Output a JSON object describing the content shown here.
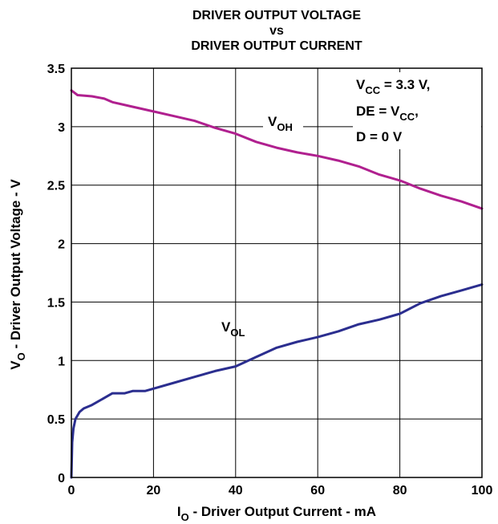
{
  "chart_data": {
    "type": "line",
    "title_lines": [
      "DRIVER OUTPUT VOLTAGE",
      "vs",
      "DRIVER OUTPUT CURRENT"
    ],
    "xlabel": {
      "main": "I",
      "sub": "O",
      "rest": " - Driver Output Current - mA"
    },
    "ylabel": {
      "main": "V",
      "sub": "O",
      "rest": " - Driver Output Voltage - V"
    },
    "xlim": [
      0,
      100
    ],
    "ylim": [
      0,
      3.5
    ],
    "x_ticks": [
      0,
      20,
      40,
      60,
      80,
      100
    ],
    "y_ticks": [
      0,
      0.5,
      1,
      1.5,
      2,
      2.5,
      3,
      3.5
    ],
    "y_tick_labels": [
      "0",
      "0.5",
      "1",
      "1.5",
      "2",
      "2.5",
      "3",
      "3.5"
    ],
    "grid": true,
    "conditions": {
      "line1": {
        "main": "V",
        "sub": "CC",
        "rest": " = 3.3 V,"
      },
      "line2": {
        "pre": "DE = V",
        "sub": "CC",
        "rest": ","
      },
      "line3": "D = 0 V"
    },
    "series": [
      {
        "name": "V",
        "name_sub": "OH",
        "color": "#b0208f",
        "x": [
          0,
          1.5,
          5,
          8,
          10,
          15,
          20,
          25,
          30,
          35,
          40,
          45,
          50,
          55,
          60,
          65,
          70,
          75,
          80,
          85,
          90,
          95,
          100
        ],
        "y": [
          3.31,
          3.27,
          3.26,
          3.24,
          3.21,
          3.17,
          3.13,
          3.09,
          3.05,
          2.99,
          2.94,
          2.87,
          2.82,
          2.78,
          2.75,
          2.71,
          2.66,
          2.59,
          2.54,
          2.47,
          2.41,
          2.36,
          2.3
        ]
      },
      {
        "name": "V",
        "name_sub": "OL",
        "color": "#2b2e8f",
        "x": [
          0,
          0.2,
          0.5,
          1,
          2,
          3,
          5,
          8,
          10,
          13,
          15,
          18,
          20,
          25,
          30,
          35,
          40,
          45,
          50,
          55,
          60,
          65,
          70,
          75,
          80,
          85,
          90,
          95,
          100
        ],
        "y": [
          0,
          0.3,
          0.42,
          0.5,
          0.56,
          0.59,
          0.62,
          0.68,
          0.72,
          0.72,
          0.74,
          0.74,
          0.76,
          0.81,
          0.86,
          0.91,
          0.95,
          1.03,
          1.11,
          1.16,
          1.2,
          1.25,
          1.31,
          1.35,
          1.4,
          1.49,
          1.55,
          1.6,
          1.65
        ]
      }
    ]
  }
}
